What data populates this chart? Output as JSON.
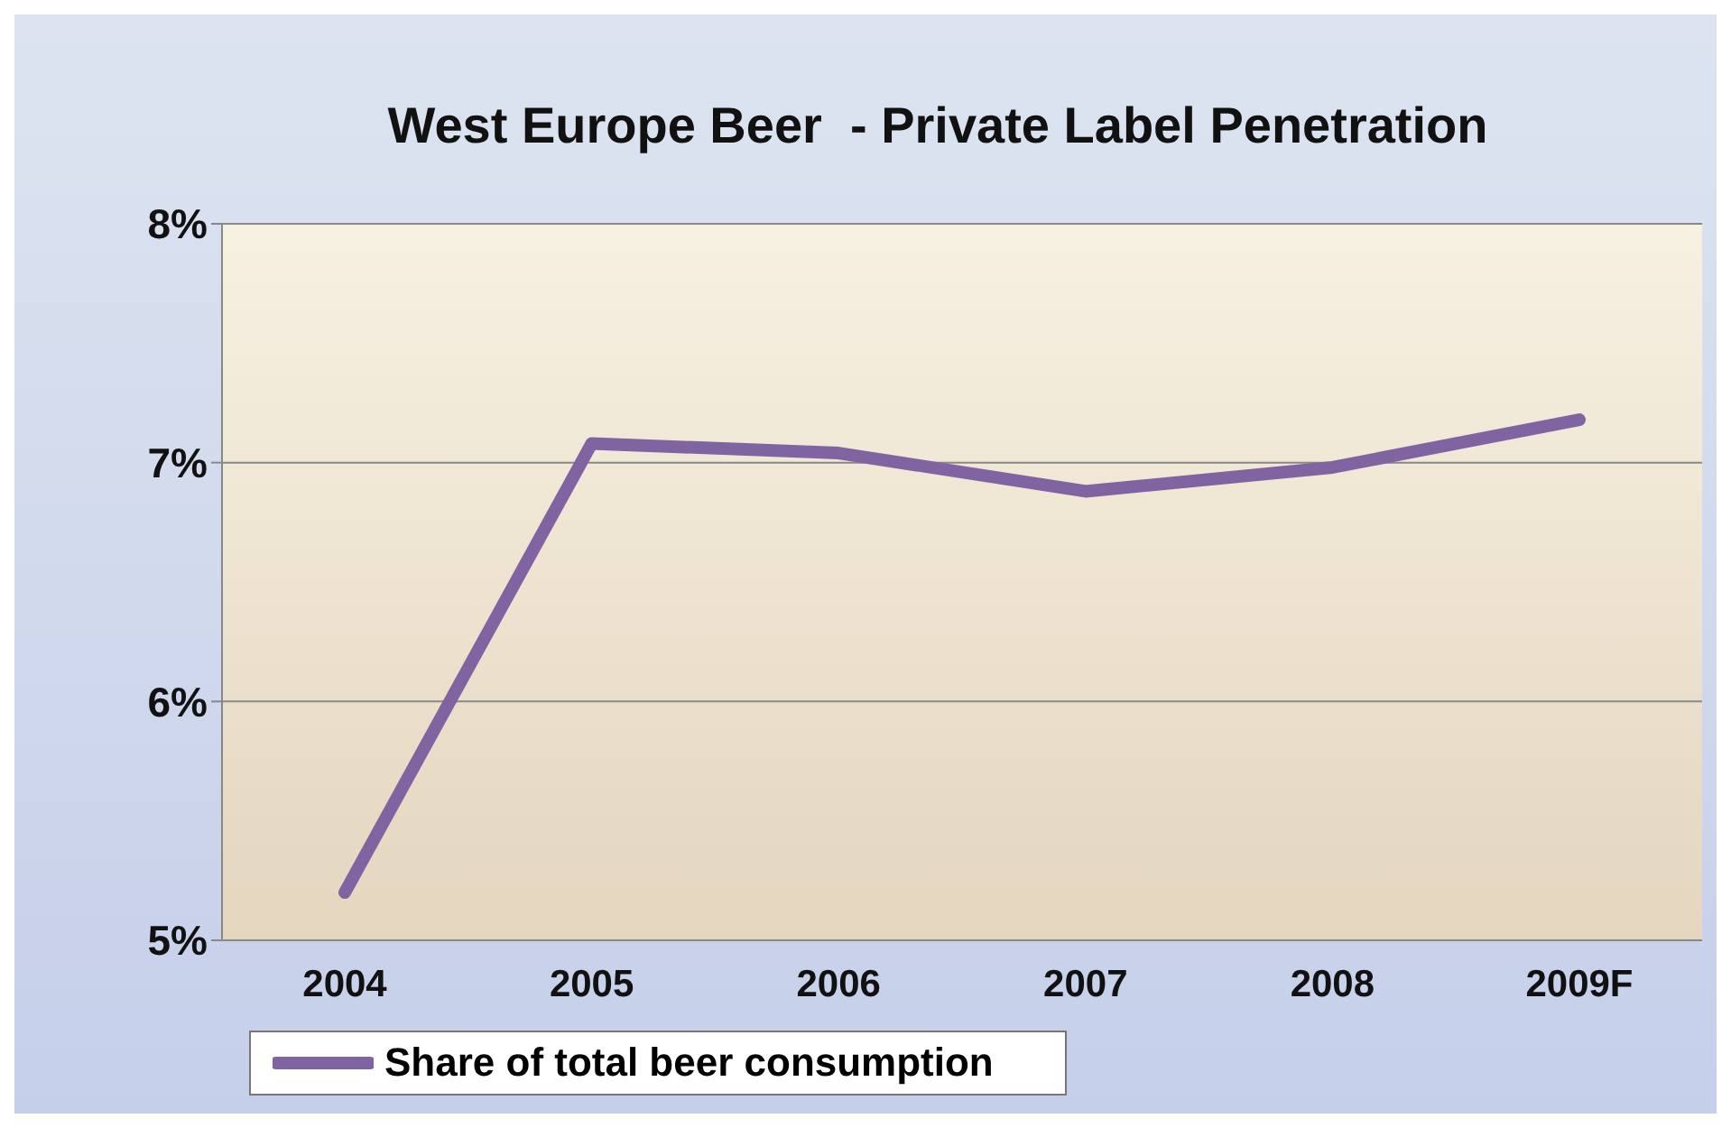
{
  "chart_data": {
    "type": "line",
    "title": "West Europe Beer  - Private Label Penetration",
    "categories": [
      "2004",
      "2005",
      "2006",
      "2007",
      "2008",
      "2009F"
    ],
    "series": [
      {
        "name": "Share of total beer consumption",
        "color": "#8064a2",
        "values": [
          5.2,
          7.08,
          7.04,
          6.88,
          6.98,
          7.18
        ]
      }
    ],
    "ylim": [
      5,
      8
    ],
    "yticks": [
      {
        "value": 5,
        "label": "5%"
      },
      {
        "value": 6,
        "label": "6%"
      },
      {
        "value": 7,
        "label": "7%"
      },
      {
        "value": 8,
        "label": "8%"
      }
    ],
    "grid": "y",
    "legend": "bottom left",
    "marker": "none",
    "line_style": "solid"
  }
}
